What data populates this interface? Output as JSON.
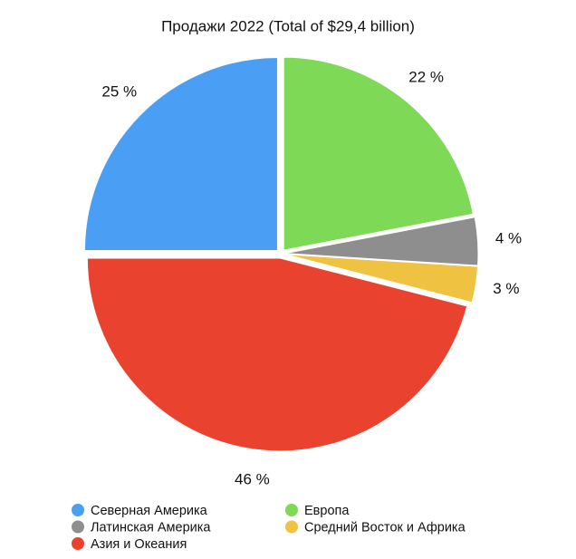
{
  "chart_data": {
    "type": "pie",
    "title": "Продажи 2022 (Total of $29,4 billion)",
    "categories": [
      "Северная Америка",
      "Европа",
      "Латинская Америка",
      "Средний Восток и Африка",
      "Азия и Океания"
    ],
    "values": [
      25,
      22,
      4,
      3,
      46
    ],
    "value_labels": [
      "25 %",
      "22 %",
      "4 %",
      "3 %",
      "46 %"
    ],
    "colors": [
      "#4a9ff5",
      "#7ed957",
      "#8e8e8e",
      "#f0c242",
      "#e94330"
    ],
    "legend": "bottom"
  }
}
